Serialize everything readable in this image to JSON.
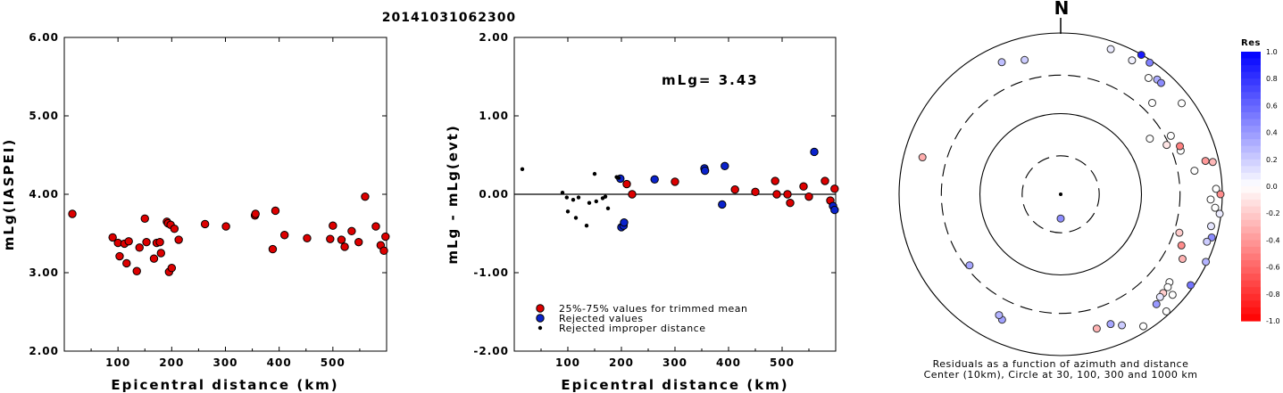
{
  "title": "20141031062300",
  "colors": {
    "trimmed": "#dd0000",
    "rejected": "#0a22cc",
    "improper": "#000000"
  },
  "chart_data": [
    {
      "type": "scatter",
      "xlabel": "Epicentral distance (km)",
      "ylabel": "mLg(IASPEI)",
      "xlim": [
        0,
        600
      ],
      "ylim": [
        2.0,
        6.0
      ],
      "xticks": [
        "100",
        "200",
        "300",
        "400",
        "500"
      ],
      "yticks": [
        "2.00",
        "3.00",
        "4.00",
        "5.00",
        "6.00"
      ],
      "series": [
        {
          "key": "trimmed",
          "points": [
            [
              15,
              3.75
            ],
            [
              90,
              3.45
            ],
            [
              100,
              3.38
            ],
            [
              103,
              3.21
            ],
            [
              112,
              3.37
            ],
            [
              116,
              3.12
            ],
            [
              120,
              3.4
            ],
            [
              135,
              3.02
            ],
            [
              140,
              3.32
            ],
            [
              150,
              3.69
            ],
            [
              153,
              3.39
            ],
            [
              167,
              3.18
            ],
            [
              172,
              3.38
            ],
            [
              178,
              3.39
            ],
            [
              180,
              3.25
            ],
            [
              191,
              3.65
            ],
            [
              193,
              3.63
            ],
            [
              195,
              3.01
            ],
            [
              198,
              3.61
            ],
            [
              200,
              3.06
            ],
            [
              205,
              3.56
            ],
            [
              213,
              3.42
            ],
            [
              262,
              3.62
            ],
            [
              301,
              3.59
            ],
            [
              355,
              3.73
            ],
            [
              356,
              3.75
            ],
            [
              388,
              3.3
            ],
            [
              393,
              3.79
            ],
            [
              410,
              3.48
            ],
            [
              452,
              3.44
            ],
            [
              495,
              3.43
            ],
            [
              500,
              3.6
            ],
            [
              516,
              3.42
            ],
            [
              522,
              3.33
            ],
            [
              535,
              3.53
            ],
            [
              548,
              3.39
            ],
            [
              560,
              3.97
            ],
            [
              580,
              3.59
            ],
            [
              589,
              3.35
            ],
            [
              595,
              3.28
            ],
            [
              598,
              3.46
            ]
          ]
        }
      ]
    },
    {
      "type": "scatter",
      "xlabel": "Epicentral distance (km)",
      "ylabel": "mLg - mLg(evt)",
      "xlim": [
        0,
        600
      ],
      "ylim": [
        -2.0,
        2.0
      ],
      "xticks": [
        "100",
        "200",
        "300",
        "400",
        "500"
      ],
      "yticks": [
        "-2.00",
        "-1.00",
        "0.00",
        "1.00",
        "2.00"
      ],
      "annotation": "mLg= 3.43",
      "legend": [
        {
          "key": "trimmed",
          "label": "25%-75% values for trimmed mean"
        },
        {
          "key": "rejected",
          "label": "Rejected values"
        },
        {
          "key": "improper",
          "label": "Rejected improper distance"
        }
      ],
      "series": [
        {
          "key": "trimmed",
          "points": [
            [
              210,
              0.13
            ],
            [
              220,
              0.0
            ],
            [
              300,
              0.16
            ],
            [
              412,
              0.06
            ],
            [
              450,
              0.03
            ],
            [
              487,
              0.17
            ],
            [
              490,
              0.0
            ],
            [
              510,
              0.0
            ],
            [
              515,
              -0.11
            ],
            [
              540,
              0.1
            ],
            [
              550,
              -0.03
            ],
            [
              580,
              0.17
            ],
            [
              590,
              -0.08
            ],
            [
              598,
              0.07
            ]
          ]
        },
        {
          "key": "rejected",
          "points": [
            [
              198,
              0.2
            ],
            [
              200,
              -0.42
            ],
            [
              204,
              -0.4
            ],
            [
              205,
              -0.36
            ],
            [
              262,
              0.19
            ],
            [
              355,
              0.33
            ],
            [
              356,
              0.3
            ],
            [
              388,
              -0.13
            ],
            [
              393,
              0.36
            ],
            [
              560,
              0.54
            ],
            [
              595,
              -0.15
            ],
            [
              598,
              -0.2
            ]
          ]
        },
        {
          "key": "improper",
          "points": [
            [
              15,
              0.32
            ],
            [
              90,
              0.02
            ],
            [
              98,
              -0.04
            ],
            [
              100,
              -0.22
            ],
            [
              110,
              -0.07
            ],
            [
              115,
              -0.3
            ],
            [
              120,
              -0.04
            ],
            [
              135,
              -0.4
            ],
            [
              140,
              -0.11
            ],
            [
              150,
              0.26
            ],
            [
              153,
              -0.09
            ],
            [
              165,
              -0.05
            ],
            [
              170,
              -0.03
            ],
            [
              175,
              -0.18
            ],
            [
              191,
              0.22
            ],
            [
              195,
              0.21
            ]
          ]
        }
      ]
    },
    {
      "type": "polar-scatter",
      "north_label": "N",
      "caption_lines": [
        "Residuals as a function of azimuth and distance",
        "Center (10km), Circle at 30, 100, 300 and 1000 km"
      ],
      "colorbar_title": "Res",
      "colorbar_ticks": [
        "1.0",
        "0.8",
        "0.6",
        "0.4",
        "0.2",
        "0.0",
        "-0.2",
        "-0.4",
        "-0.6",
        "-0.8",
        "-1.0"
      ],
      "rings": [
        {
          "km": 30,
          "dashed": true
        },
        {
          "km": 100,
          "dashed": false
        },
        {
          "km": 300,
          "dashed": true
        },
        {
          "km": 1000,
          "dashed": false
        }
      ],
      "stations": [
        {
          "az": 180,
          "dist": 20,
          "res": 0.45
        },
        {
          "az": 285,
          "dist": 590,
          "res": -0.32
        },
        {
          "az": 232,
          "dist": 270,
          "res": 0.35
        },
        {
          "az": 148,
          "dist": 850,
          "res": 0.0
        },
        {
          "az": 205,
          "dist": 520,
          "res": 0.37
        },
        {
          "az": 207,
          "dist": 480,
          "res": 0.3
        },
        {
          "az": 165,
          "dist": 530,
          "res": -0.3
        },
        {
          "az": 159,
          "dist": 530,
          "res": 0.35
        },
        {
          "az": 155,
          "dist": 620,
          "res": 0.2
        },
        {
          "az": 28,
          "dist": 760,
          "res": 0.05
        },
        {
          "az": 30,
          "dist": 990,
          "res": 0.9
        },
        {
          "az": 34,
          "dist": 930,
          "res": 0.5
        },
        {
          "az": 40,
          "dist": 720,
          "res": 0.32
        },
        {
          "az": 42,
          "dist": 720,
          "res": 0.45
        },
        {
          "az": 19,
          "dist": 800,
          "res": 0.08
        },
        {
          "az": 336,
          "dist": 620,
          "res": 0.25
        },
        {
          "az": 345,
          "dist": 530,
          "res": 0.2
        },
        {
          "az": 37,
          "dist": 640,
          "res": 0.0
        },
        {
          "az": 45,
          "dist": 400,
          "res": 0.0
        },
        {
          "az": 53,
          "dist": 750,
          "res": 0.0
        },
        {
          "az": 58,
          "dist": 200,
          "res": 0.0
        },
        {
          "az": 70,
          "dist": 380,
          "res": 0.0
        },
        {
          "az": 78,
          "dist": 840,
          "res": -0.28
        },
        {
          "az": 80,
          "dist": 480,
          "res": 0.0
        },
        {
          "az": 77,
          "dist": 690,
          "res": -0.4
        },
        {
          "az": 62,
          "dist": 350,
          "res": 0.0
        },
        {
          "az": 68,
          "dist": 390,
          "res": -0.5
        },
        {
          "az": 65,
          "dist": 280,
          "res": -0.1
        },
        {
          "az": 88,
          "dist": 840,
          "res": 0.0
        },
        {
          "az": 90,
          "dist": 950,
          "res": -0.45
        },
        {
          "az": 92,
          "dist": 720,
          "res": 0.0
        },
        {
          "az": 95,
          "dist": 830,
          "res": 0.0
        },
        {
          "az": 97,
          "dist": 960,
          "res": 0.08
        },
        {
          "az": 102,
          "dist": 800,
          "res": 0.1
        },
        {
          "az": 106,
          "dist": 880,
          "res": 0.45
        },
        {
          "az": 108,
          "dist": 800,
          "res": 0.2
        },
        {
          "az": 108,
          "dist": 350,
          "res": -0.2
        },
        {
          "az": 115,
          "dist": 960,
          "res": 0.3
        },
        {
          "az": 113,
          "dist": 420,
          "res": -0.45
        },
        {
          "az": 118,
          "dist": 510,
          "res": -0.3
        },
        {
          "az": 129,
          "dist": 540,
          "res": 0.0
        },
        {
          "az": 131,
          "dist": 570,
          "res": 0.0
        },
        {
          "az": 134,
          "dist": 580,
          "res": -0.2
        },
        {
          "az": 136,
          "dist": 590,
          "res": 0.1
        },
        {
          "az": 125,
          "dist": 920,
          "res": 0.55
        },
        {
          "az": 132,
          "dist": 730,
          "res": 0.0
        },
        {
          "az": 138,
          "dist": 900,
          "res": 0.0
        },
        {
          "az": 139,
          "dist": 640,
          "res": 0.4
        }
      ]
    }
  ]
}
